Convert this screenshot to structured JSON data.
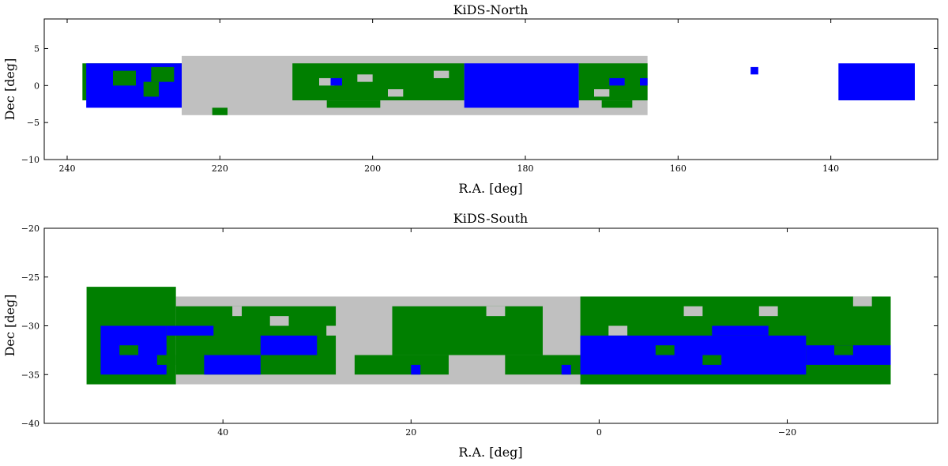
{
  "colors": {
    "gray": "#c0c0c0",
    "green": "#007f00",
    "blue": "#0000ff"
  },
  "chart_data": [
    {
      "type": "heatmap",
      "title": "KiDS-North",
      "xlabel": "R.A. [deg]",
      "ylabel": "Dec [deg]",
      "xlim": [
        243,
        126
      ],
      "ylim": [
        -10,
        9
      ],
      "xticks": [
        240,
        220,
        200,
        180,
        160,
        140
      ],
      "yticks": [
        -10,
        -5,
        0,
        5
      ],
      "grid": false,
      "regions": [
        {
          "color": "gray",
          "x0": 225,
          "x1": 164,
          "y0": -4,
          "y1": 4
        },
        {
          "color": "green",
          "x0": 238,
          "x1": 225,
          "y0": -2,
          "y1": 3
        },
        {
          "color": "blue",
          "x0": 237.5,
          "x1": 225,
          "y0": -3,
          "y1": 3
        },
        {
          "color": "green",
          "x0": 234,
          "x1": 231,
          "y0": 0,
          "y1": 2
        },
        {
          "color": "green",
          "x0": 230,
          "x1": 228,
          "y0": -1.5,
          "y1": 0.5
        },
        {
          "color": "green",
          "x0": 229,
          "x1": 226,
          "y0": 0.5,
          "y1": 2.5
        },
        {
          "color": "green",
          "x0": 221,
          "x1": 219,
          "y0": -4,
          "y1": -3
        },
        {
          "color": "green",
          "x0": 210.5,
          "x1": 188,
          "y0": -2,
          "y1": 3
        },
        {
          "color": "green",
          "x0": 206,
          "x1": 199,
          "y0": -3,
          "y1": -2
        },
        {
          "color": "gray",
          "x0": 207,
          "x1": 205,
          "y0": 0,
          "y1": 1
        },
        {
          "color": "gray",
          "x0": 202,
          "x1": 200,
          "y0": 0.5,
          "y1": 1.5
        },
        {
          "color": "gray",
          "x0": 198,
          "x1": 196,
          "y0": -1.5,
          "y1": -0.5
        },
        {
          "color": "gray",
          "x0": 192,
          "x1": 190,
          "y0": 1,
          "y1": 2
        },
        {
          "color": "blue",
          "x0": 205.5,
          "x1": 204,
          "y0": 0,
          "y1": 1
        },
        {
          "color": "blue",
          "x0": 188,
          "x1": 173,
          "y0": -3,
          "y1": 3
        },
        {
          "color": "green",
          "x0": 173,
          "x1": 164,
          "y0": -2,
          "y1": 3
        },
        {
          "color": "green",
          "x0": 170,
          "x1": 166,
          "y0": -3,
          "y1": -2
        },
        {
          "color": "gray",
          "x0": 171,
          "x1": 169,
          "y0": -1.5,
          "y1": -0.5
        },
        {
          "color": "blue",
          "x0": 169,
          "x1": 167,
          "y0": 0,
          "y1": 1
        },
        {
          "color": "blue",
          "x0": 165,
          "x1": 164,
          "y0": 0,
          "y1": 1
        },
        {
          "color": "blue",
          "x0": 150.5,
          "x1": 149.5,
          "y0": 1.5,
          "y1": 2.5
        },
        {
          "color": "blue",
          "x0": 139,
          "x1": 129,
          "y0": -2,
          "y1": 3
        }
      ]
    },
    {
      "type": "heatmap",
      "title": "KiDS-South",
      "xlabel": "R.A. [deg]",
      "ylabel": "Dec [deg]",
      "xlim": [
        59,
        -36
      ],
      "ylim": [
        -40,
        -20
      ],
      "xticks": [
        40,
        20,
        0,
        -20
      ],
      "yticks": [
        -40,
        -35,
        -30,
        -25,
        -20
      ],
      "grid": false,
      "regions": [
        {
          "color": "gray",
          "x0": 45,
          "x1": -30,
          "y0": -36,
          "y1": -27
        },
        {
          "color": "green",
          "x0": 54.5,
          "x1": 45,
          "y0": -36,
          "y1": -26
        },
        {
          "color": "green",
          "x0": 45,
          "x1": 28,
          "y0": -35,
          "y1": -28
        },
        {
          "color": "green",
          "x0": 22,
          "x1": 6,
          "y0": -33,
          "y1": -28
        },
        {
          "color": "green",
          "x0": 26,
          "x1": 16,
          "y0": -35,
          "y1": -33
        },
        {
          "color": "green",
          "x0": 10,
          "x1": 2,
          "y0": -35,
          "y1": -33
        },
        {
          "color": "green",
          "x0": 2,
          "x1": -31,
          "y0": -36,
          "y1": -27
        },
        {
          "color": "gray",
          "x0": 35,
          "x1": 33,
          "y0": -30,
          "y1": -29
        },
        {
          "color": "gray",
          "x0": 39,
          "x1": 38,
          "y0": -29,
          "y1": -28
        },
        {
          "color": "gray",
          "x0": 29,
          "x1": 27,
          "y0": -31,
          "y1": -30
        },
        {
          "color": "gray",
          "x0": 12,
          "x1": 10,
          "y0": -29,
          "y1": -28
        },
        {
          "color": "gray",
          "x0": -9,
          "x1": -11,
          "y0": -29,
          "y1": -28
        },
        {
          "color": "gray",
          "x0": -17,
          "x1": -19,
          "y0": -29,
          "y1": -28
        },
        {
          "color": "gray",
          "x0": -27,
          "x1": -29,
          "y0": -28,
          "y1": -27
        },
        {
          "color": "gray",
          "x0": -1,
          "x1": -3,
          "y0": -31,
          "y1": -30
        },
        {
          "color": "blue",
          "x0": 53,
          "x1": 46,
          "y0": -35,
          "y1": -30
        },
        {
          "color": "blue",
          "x0": 46,
          "x1": 41,
          "y0": -31,
          "y1": -30
        },
        {
          "color": "blue",
          "x0": 42,
          "x1": 36,
          "y0": -35,
          "y1": -33
        },
        {
          "color": "blue",
          "x0": 36,
          "x1": 30,
          "y0": -33,
          "y1": -31
        },
        {
          "color": "blue",
          "x0": 20,
          "x1": 19,
          "y0": -35,
          "y1": -34
        },
        {
          "color": "blue",
          "x0": 4,
          "x1": 3,
          "y0": -35,
          "y1": -34
        },
        {
          "color": "blue",
          "x0": 2,
          "x1": -22,
          "y0": -35,
          "y1": -31
        },
        {
          "color": "blue",
          "x0": -12,
          "x1": -18,
          "y0": -31,
          "y1": -30
        },
        {
          "color": "blue",
          "x0": -22,
          "x1": -31,
          "y0": -34,
          "y1": -32
        },
        {
          "color": "green",
          "x0": 51,
          "x1": 49,
          "y0": -33,
          "y1": -32
        },
        {
          "color": "green",
          "x0": 47,
          "x1": 45,
          "y0": -34,
          "y1": -33
        },
        {
          "color": "green",
          "x0": -6,
          "x1": -8,
          "y0": -33,
          "y1": -32
        },
        {
          "color": "green",
          "x0": -11,
          "x1": -13,
          "y0": -34,
          "y1": -33
        },
        {
          "color": "green",
          "x0": -25,
          "x1": -27,
          "y0": -33,
          "y1": -32
        }
      ]
    }
  ]
}
